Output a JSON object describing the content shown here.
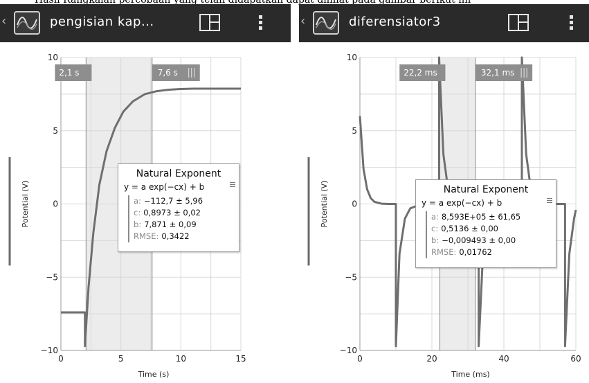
{
  "top_caption": "Hasil Rangkaian percobaan yang telah didapatkan dapat dilihat pada gambar berikut ini",
  "panels": [
    {
      "app": {
        "back_icon": "chevron-left-icon",
        "sensor_icon": "waveform-icon",
        "title": "pengisian kap...",
        "layout_icon": "layout-grid-icon",
        "menu_icon": "more-vert-icon"
      },
      "graph": {
        "ylabel": "Potential (V)",
        "xlabel": "Time (s)",
        "xlim": [
          0,
          15
        ],
        "ylim": [
          -10,
          10
        ],
        "x_ticks": [
          "0",
          "5",
          "10",
          "15"
        ],
        "y_ticks": [
          "10",
          "5",
          "0",
          "−5",
          "−10"
        ],
        "selection": {
          "start": 2.1,
          "end": 7.6,
          "start_label": "2,1 s",
          "end_label": "7,6 s"
        }
      },
      "fit": {
        "title": "Natural Exponent",
        "equation": "y = a exp(−cx) + b",
        "params": [
          {
            "key": "a:",
            "value": "−112,7 ± 5,96"
          },
          {
            "key": "c:",
            "value": "0,8973 ± 0,02"
          },
          {
            "key": "b:",
            "value": "7,871 ± 0,09"
          },
          {
            "key": "RMSE:",
            "value": "0,3422"
          }
        ]
      }
    },
    {
      "app": {
        "back_icon": "chevron-left-icon",
        "sensor_icon": "waveform-icon",
        "title": "diferensiator3",
        "layout_icon": "layout-grid-icon",
        "menu_icon": "more-vert-icon"
      },
      "graph": {
        "ylabel": "Potential (V)",
        "xlabel": "Time (ms)",
        "xlim": [
          0,
          60
        ],
        "ylim": [
          -10,
          10
        ],
        "x_ticks": [
          "0",
          "20",
          "40",
          "60"
        ],
        "y_ticks": [
          "10",
          "5",
          "0",
          "−5",
          "−10"
        ],
        "selection": {
          "start": 22.2,
          "end": 32.1,
          "start_label": "22,2 ms",
          "end_label": "32,1 ms"
        }
      },
      "fit": {
        "title": "Natural Exponent",
        "equation": "y = a exp(−cx) + b",
        "params": [
          {
            "key": "a:",
            "value": "8,593E+05 ± 61,65"
          },
          {
            "key": "c:",
            "value": "0,5136 ± 0,00"
          },
          {
            "key": "b:",
            "value": "−0,009493 ± 0,00"
          },
          {
            "key": "RMSE:",
            "value": "0,01762"
          }
        ]
      }
    }
  ],
  "colors": {
    "appbar": "#2a2a2a",
    "grid": "#d8d8d8",
    "trace": "#6f6f6f",
    "fit_curve": "#555555",
    "selection_fill": "#ececec",
    "selection_label": "#8e8e8e"
  },
  "chart_data": [
    {
      "type": "line",
      "xlabel": "Time (s)",
      "ylabel": "Potential (V)",
      "xlim": [
        0,
        15
      ],
      "ylim": [
        -10,
        10
      ],
      "grid": true,
      "series": [
        {
          "values_x": [
            0,
            2,
            2,
            2.3,
            2.7,
            3.2,
            3.8,
            4.5,
            5.2,
            6,
            7,
            8,
            9,
            10,
            11,
            12,
            13,
            14,
            15
          ],
          "values_y": [
            -7.4,
            -7.4,
            -9.7,
            -5.7,
            -2.0,
            1.3,
            3.6,
            5.2,
            6.3,
            7.0,
            7.5,
            7.7,
            7.8,
            7.85,
            7.87,
            7.87,
            7.87,
            7.87,
            7.87
          ]
        }
      ]
    },
    {
      "type": "line",
      "xlabel": "Time (ms)",
      "ylabel": "Potential (V)",
      "xlim": [
        0,
        60
      ],
      "ylim": [
        -10,
        10
      ],
      "grid": true,
      "series": [
        {
          "values_x": [
            0,
            1,
            2,
            3,
            4,
            6,
            8,
            10,
            10,
            11,
            12.5,
            14,
            17,
            20,
            22,
            22,
            23.2,
            24.5,
            27,
            30,
            33,
            33,
            34.2,
            35.5,
            38,
            42,
            45,
            45,
            46.2,
            47.5,
            50,
            54,
            57,
            57,
            58.2,
            59.5,
            60
          ],
          "values_y": [
            6.0,
            2.4,
            1.0,
            0.4,
            0.15,
            0.02,
            0.0,
            0.0,
            -9.7,
            -3.4,
            -1.0,
            -0.3,
            -0.02,
            0.0,
            0.0,
            10,
            3.4,
            1.0,
            0.1,
            0.0,
            0.0,
            -9.7,
            -3.4,
            -1.0,
            -0.1,
            0.0,
            0.0,
            10,
            3.4,
            1.0,
            0.1,
            0.0,
            0.0,
            -9.7,
            -3.4,
            -1.0,
            -0.4
          ]
        }
      ]
    }
  ]
}
